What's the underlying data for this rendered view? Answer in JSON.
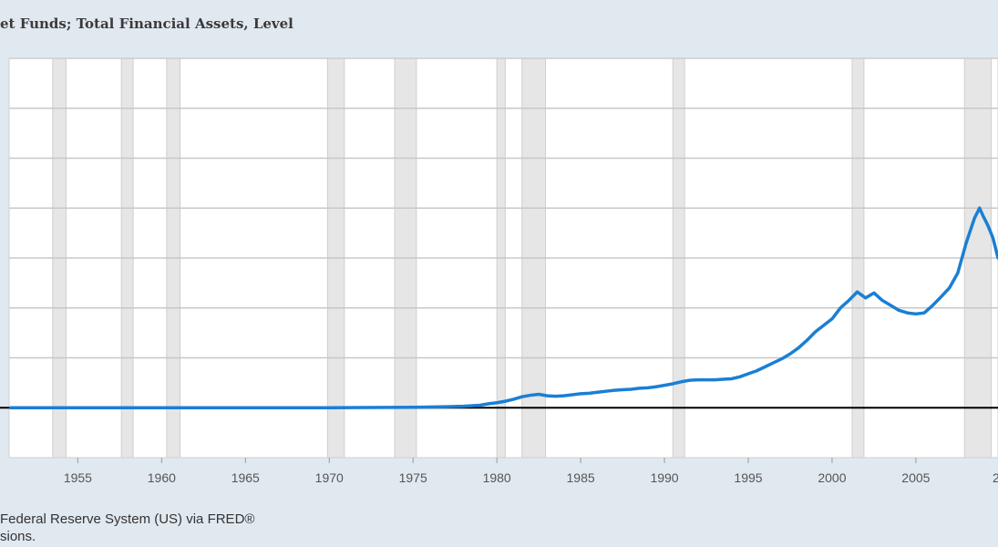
{
  "header": {
    "title": "et Funds; Total Financial Assets, Level"
  },
  "footer": {
    "source_line1": "Federal Reserve System (US) via FRED®",
    "source_line2": "sions."
  },
  "colors": {
    "background": "#e1e9f0",
    "plot_background": "#ffffff",
    "series": "#1a7fd4",
    "recession_shade": "#e6e6e6",
    "grid": "#c8c8c8",
    "baseline": "#000000"
  },
  "chart_data": {
    "type": "line",
    "title": "et Funds; Total Financial Assets, Level",
    "xlabel": "",
    "ylabel": "",
    "x_ticks": [
      "1955",
      "1960",
      "1965",
      "1970",
      "1975",
      "1980",
      "1985",
      "1990",
      "1995",
      "2000",
      "2005",
      "20"
    ],
    "xlim": [
      1950.9,
      2009.9
    ],
    "ylim": [
      -0.1,
      0.7
    ],
    "grid": true,
    "recessions": [
      [
        1953.5,
        1954.3
      ],
      [
        1957.6,
        1958.3
      ],
      [
        1960.3,
        1961.1
      ],
      [
        1969.9,
        1970.9
      ],
      [
        1973.9,
        1975.2
      ],
      [
        1980.0,
        1980.5
      ],
      [
        1981.5,
        1982.9
      ],
      [
        1990.5,
        1991.2
      ],
      [
        2001.2,
        2001.9
      ],
      [
        2007.9,
        2009.5
      ]
    ],
    "series": [
      {
        "x": [
          1951.0,
          1960.0,
          1970.0,
          1975.0,
          1977.0,
          1978.0,
          1979.0,
          1979.5,
          1980.0,
          1980.5,
          1981.0,
          1981.5,
          1982.0,
          1982.5,
          1983.0,
          1983.5,
          1984.0,
          1984.5,
          1985.0,
          1985.5,
          1986.0,
          1986.5,
          1987.0,
          1987.5,
          1988.0,
          1988.5,
          1989.0,
          1989.5,
          1990.0,
          1990.5,
          1991.0,
          1991.5,
          1992.0,
          1992.5,
          1993.0,
          1993.5,
          1994.0,
          1994.5,
          1995.0,
          1995.5,
          1996.0,
          1996.5,
          1997.0,
          1997.5,
          1998.0,
          1998.5,
          1999.0,
          1999.5,
          2000.0,
          2000.5,
          2001.0,
          2001.5,
          2002.0,
          2002.5,
          2003.0,
          2003.5,
          2004.0,
          2004.5,
          2005.0,
          2005.5,
          2006.0,
          2006.5,
          2007.0,
          2007.5,
          2008.0,
          2008.5,
          2008.8,
          2009.0,
          2009.3,
          2009.6,
          2009.9
        ],
        "values": [
          0.0,
          0.0,
          0.0,
          0.001,
          0.002,
          0.003,
          0.005,
          0.008,
          0.01,
          0.013,
          0.017,
          0.022,
          0.025,
          0.027,
          0.024,
          0.023,
          0.024,
          0.026,
          0.028,
          0.029,
          0.031,
          0.033,
          0.035,
          0.036,
          0.037,
          0.039,
          0.04,
          0.042,
          0.045,
          0.048,
          0.052,
          0.055,
          0.056,
          0.056,
          0.056,
          0.057,
          0.058,
          0.062,
          0.068,
          0.074,
          0.082,
          0.09,
          0.098,
          0.108,
          0.12,
          0.135,
          0.152,
          0.165,
          0.178,
          0.2,
          0.215,
          0.232,
          0.22,
          0.23,
          0.215,
          0.205,
          0.195,
          0.19,
          0.188,
          0.19,
          0.205,
          0.222,
          0.24,
          0.27,
          0.33,
          0.38,
          0.4,
          0.385,
          0.365,
          0.34,
          0.3
        ]
      }
    ]
  }
}
